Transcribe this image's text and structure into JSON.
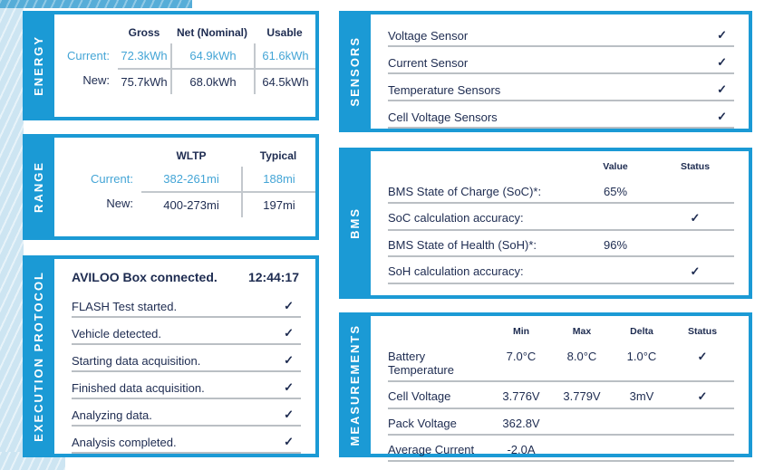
{
  "colors": {
    "accent_blue": "#1b9ad5",
    "highlight_text_blue": "#44a5d6",
    "text_navy": "#1d2b50",
    "divider_gray": "#babfc4",
    "bg_light_blue": "#cde5f2"
  },
  "icons": {
    "check": "✓"
  },
  "panels": {
    "energy": {
      "tab": "ENERGY",
      "columns": [
        "Gross",
        "Net (Nominal)",
        "Usable"
      ],
      "rows": [
        {
          "label": "Current:",
          "values": [
            "72.3kWh",
            "64.9kWh",
            "61.6kWh"
          ]
        },
        {
          "label": "New:",
          "values": [
            "75.7kWh",
            "68.0kWh",
            "64.5kWh"
          ]
        }
      ]
    },
    "range": {
      "tab": "RANGE",
      "columns": [
        "WLTP",
        "Typical"
      ],
      "rows": [
        {
          "label": "Current:",
          "values": [
            "382-261mi",
            "188mi"
          ]
        },
        {
          "label": "New:",
          "values": [
            "400-273mi",
            "197mi"
          ]
        }
      ]
    },
    "execution_protocol": {
      "tab": "EXECUTION PROTOCOL",
      "header": {
        "label": "AVILOO Box connected.",
        "time": "12:44:17"
      },
      "steps": [
        "FLASH Test started.",
        "Vehicle detected.",
        "Starting data acquisition.",
        "Finished data acquisition.",
        "Analyzing data.",
        "Analysis completed."
      ]
    },
    "sensors": {
      "tab": "SENSORS",
      "items": [
        "Voltage Sensor",
        "Current Sensor",
        "Temperature Sensors",
        "Cell Voltage Sensors"
      ]
    },
    "bms": {
      "tab": "BMS",
      "columns": [
        "Value",
        "Status"
      ],
      "rows": [
        {
          "label": "BMS State of Charge (SoC)*:",
          "value": "65%"
        },
        {
          "label": "SoC calculation accuracy:",
          "value": ""
        },
        {
          "label": "BMS State of Health (SoH)*:",
          "value": "96%"
        },
        {
          "label": "SoH calculation accuracy:",
          "value": ""
        }
      ]
    },
    "measurements": {
      "tab": "MEASUREMENTS",
      "columns": [
        "Min",
        "Max",
        "Delta",
        "Status"
      ],
      "rows": [
        {
          "label": "Battery Temperature",
          "min": "7.0°C",
          "max": "8.0°C",
          "delta": "1.0°C"
        },
        {
          "label": "Cell Voltage",
          "min": "3.776V",
          "max": "3.779V",
          "delta": "3mV"
        },
        {
          "label": "Pack Voltage",
          "min": "362.8V",
          "max": "",
          "delta": ""
        },
        {
          "label": "Average Current",
          "min": "-2.0A",
          "max": "",
          "delta": ""
        }
      ]
    }
  }
}
